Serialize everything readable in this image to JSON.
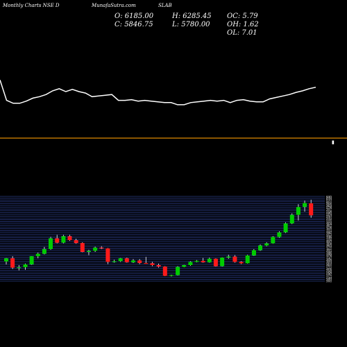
{
  "header": {
    "source": "MunafaSutra.com",
    "left_label": "Monthly Charts NSE D",
    "symbol": "SLAB",
    "ohlc": {
      "open": "O: 6185.00",
      "high": "H: 6285.45",
      "oc": "OC: 5.79",
      "close": "C: 5846.75",
      "low": "L: 5780.00",
      "oh": "OH: 1.62",
      "ol": "OL: 7.01"
    }
  },
  "colors": {
    "background": "#000000",
    "up": "#00cc00",
    "down": "#ff1a1a",
    "indicator_line": "#ffffff",
    "separator": "#e08a00",
    "grid": "#2d3f8c"
  },
  "chart_data": [
    {
      "type": "line",
      "panel": "indicator",
      "x_index": [
        0,
        1,
        2,
        3,
        4,
        5,
        6,
        7,
        8,
        9,
        10,
        11,
        12,
        13,
        14,
        15,
        16,
        17,
        18,
        19,
        20,
        21,
        22,
        23,
        24,
        25,
        26,
        27,
        28,
        29,
        30,
        31,
        32,
        33,
        34,
        35,
        36,
        37,
        38,
        39,
        40,
        41,
        42,
        43,
        44,
        45,
        46,
        47,
        48
      ],
      "values": [
        76,
        48,
        44,
        44,
        47,
        51,
        53,
        56,
        61,
        64,
        60,
        63,
        60,
        58,
        53,
        54,
        55,
        56,
        48,
        48,
        49,
        47,
        48,
        47,
        46,
        45,
        45,
        42,
        42,
        45,
        46,
        47,
        48,
        47,
        48,
        45,
        48,
        49,
        47,
        46,
        46,
        50,
        52,
        54,
        56,
        59,
        61,
        64,
        66
      ]
    },
    {
      "type": "candlestick",
      "panel": "price",
      "candles": [
        {
          "o": 4550,
          "h": 4650,
          "l": 4470,
          "c": 4640
        },
        {
          "o": 4640,
          "h": 4700,
          "l": 4340,
          "c": 4380
        },
        {
          "o": 4380,
          "h": 4450,
          "l": 4300,
          "c": 4390
        },
        {
          "o": 4390,
          "h": 4490,
          "l": 4320,
          "c": 4470
        },
        {
          "o": 4470,
          "h": 4700,
          "l": 4460,
          "c": 4700
        },
        {
          "o": 4700,
          "h": 4800,
          "l": 4640,
          "c": 4770
        },
        {
          "o": 4770,
          "h": 4960,
          "l": 4750,
          "c": 4900
        },
        {
          "o": 4900,
          "h": 5240,
          "l": 4880,
          "c": 5200
        },
        {
          "o": 5200,
          "h": 5300,
          "l": 5060,
          "c": 5080
        },
        {
          "o": 5080,
          "h": 5300,
          "l": 5060,
          "c": 5260
        },
        {
          "o": 5260,
          "h": 5300,
          "l": 5130,
          "c": 5150
        },
        {
          "o": 5150,
          "h": 5190,
          "l": 5050,
          "c": 5070
        },
        {
          "o": 5070,
          "h": 5090,
          "l": 4810,
          "c": 4820
        },
        {
          "o": 4820,
          "h": 4880,
          "l": 4730,
          "c": 4850
        },
        {
          "o": 4850,
          "h": 4970,
          "l": 4820,
          "c": 4940
        },
        {
          "o": 4940,
          "h": 4980,
          "l": 4900,
          "c": 4920
        },
        {
          "o": 4920,
          "h": 4930,
          "l": 4480,
          "c": 4540
        },
        {
          "o": 4540,
          "h": 4600,
          "l": 4520,
          "c": 4560
        },
        {
          "o": 4560,
          "h": 4650,
          "l": 4540,
          "c": 4640
        },
        {
          "o": 4640,
          "h": 4660,
          "l": 4520,
          "c": 4530
        },
        {
          "o": 4530,
          "h": 4620,
          "l": 4510,
          "c": 4580
        },
        {
          "o": 4580,
          "h": 4620,
          "l": 4480,
          "c": 4510
        },
        {
          "o": 4510,
          "h": 4680,
          "l": 4490,
          "c": 4500
        },
        {
          "o": 4500,
          "h": 4540,
          "l": 4420,
          "c": 4450
        },
        {
          "o": 4450,
          "h": 4490,
          "l": 4380,
          "c": 4410
        },
        {
          "o": 4410,
          "h": 4420,
          "l": 4140,
          "c": 4150
        },
        {
          "o": 4150,
          "h": 4180,
          "l": 4130,
          "c": 4170
        },
        {
          "o": 4170,
          "h": 4420,
          "l": 4160,
          "c": 4400
        },
        {
          "o": 4400,
          "h": 4460,
          "l": 4390,
          "c": 4450
        },
        {
          "o": 4450,
          "h": 4560,
          "l": 4430,
          "c": 4540
        },
        {
          "o": 4540,
          "h": 4590,
          "l": 4530,
          "c": 4570
        },
        {
          "o": 4570,
          "h": 4650,
          "l": 4520,
          "c": 4530
        },
        {
          "o": 4530,
          "h": 4660,
          "l": 4520,
          "c": 4630
        },
        {
          "o": 4630,
          "h": 4640,
          "l": 4410,
          "c": 4420
        },
        {
          "o": 4420,
          "h": 4670,
          "l": 4410,
          "c": 4660
        },
        {
          "o": 4660,
          "h": 4740,
          "l": 4630,
          "c": 4690
        },
        {
          "o": 4690,
          "h": 4730,
          "l": 4520,
          "c": 4540
        },
        {
          "o": 4540,
          "h": 4560,
          "l": 4480,
          "c": 4500
        },
        {
          "o": 4500,
          "h": 4740,
          "l": 4490,
          "c": 4720
        },
        {
          "o": 4720,
          "h": 4900,
          "l": 4710,
          "c": 4870
        },
        {
          "o": 4870,
          "h": 5030,
          "l": 4850,
          "c": 5000
        },
        {
          "o": 5000,
          "h": 5090,
          "l": 4980,
          "c": 5060
        },
        {
          "o": 5060,
          "h": 5260,
          "l": 5050,
          "c": 5240
        },
        {
          "o": 5240,
          "h": 5400,
          "l": 5220,
          "c": 5370
        },
        {
          "o": 5370,
          "h": 5650,
          "l": 5350,
          "c": 5620
        },
        {
          "o": 5620,
          "h": 5900,
          "l": 5600,
          "c": 5860
        },
        {
          "o": 5860,
          "h": 6160,
          "l": 5700,
          "c": 6080
        },
        {
          "o": 6080,
          "h": 6260,
          "l": 5950,
          "c": 6190
        },
        {
          "o": 6185.0,
          "h": 6285.45,
          "l": 5780.0,
          "c": 5846.75
        }
      ],
      "y_ticks": [
        "6285",
        "6194",
        "6103",
        "6012",
        "5920",
        "5829",
        "5738",
        "5647",
        "5556",
        "5465",
        "5374",
        "5283",
        "5191",
        "5100",
        "5009",
        "4918",
        "4827",
        "4736",
        "4645",
        "4554",
        "4462",
        "4371",
        "4280",
        "4189",
        "4098",
        "4007",
        "3916",
        "3825",
        "3733",
        "3642",
        "3551",
        "3460",
        "3369",
        "3278",
        "3187",
        "3096",
        "3004",
        "2913",
        "2822",
        "2731",
        "2640",
        "2549",
        "2458",
        "2367",
        "2275",
        "2184",
        "2093",
        "2002"
      ]
    }
  ]
}
